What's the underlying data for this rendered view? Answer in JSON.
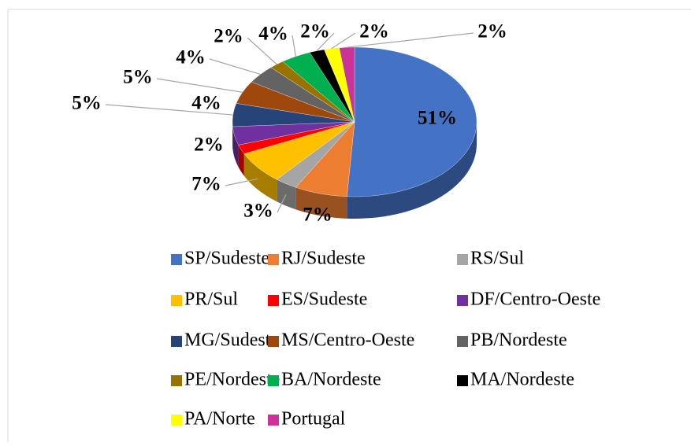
{
  "chart_data": {
    "type": "pie",
    "categories": [
      "SP/Sudeste",
      "RJ/Sudeste",
      "RS/Sul",
      "PR/Sul",
      "ES/Sudeste",
      "DF/Centro-Oeste",
      "MG/Sudeste",
      "MS/Centro-Oeste",
      "PB/Nordeste",
      "PE/Nordeste",
      "BA/Nordeste",
      "MA/Nordeste",
      "PA/Norte",
      "Portugal"
    ],
    "values": [
      51,
      7,
      3,
      7,
      2,
      4,
      5,
      5,
      4,
      2,
      4,
      2,
      2,
      2
    ],
    "value_labels": [
      "51%",
      "7%",
      "3%",
      "7%",
      "2%",
      "4%",
      "5%",
      "5%",
      "4%",
      "2%",
      "4%",
      "2%",
      "2%",
      "2%"
    ],
    "colors": [
      "#4472c4",
      "#ed7d31",
      "#a5a5a5",
      "#ffc000",
      "#ff0000",
      "#7030a0",
      "#264478",
      "#9e480e",
      "#636363",
      "#997300",
      "#00b050",
      "#000000",
      "#ffff00",
      "#cc3399"
    ],
    "legend": "bottom"
  }
}
